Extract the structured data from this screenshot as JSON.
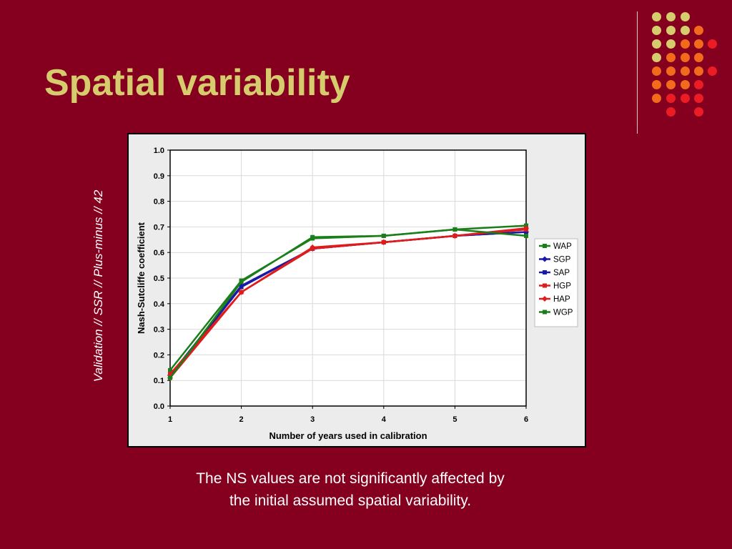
{
  "slide": {
    "title": "Spatial variability",
    "side_label": "Validation // SSR // Plus-minus // 42",
    "caption_lines": [
      "The NS values are not significantly affected by",
      "the initial assumed spatial variability."
    ],
    "colors": {
      "background": "#85001f",
      "title": "#d6cc6e",
      "dot_yellow": "#d6cc6e",
      "dot_orange": "#f26b1d",
      "dot_red": "#ec1c24"
    }
  },
  "chart_data": {
    "type": "line",
    "xlabel": "Number of years used in calibration",
    "ylabel": "Nash-Sutcliffe coefficient",
    "x": [
      1,
      2,
      3,
      4,
      5,
      6
    ],
    "xlim": [
      1,
      6
    ],
    "ylim": [
      0.0,
      1.0
    ],
    "x_ticks": [
      "1",
      "2",
      "3",
      "4",
      "5",
      "6"
    ],
    "y_ticks": [
      "0.0",
      "0.1",
      "0.2",
      "0.3",
      "0.4",
      "0.5",
      "0.6",
      "0.7",
      "0.8",
      "0.9",
      "1.0"
    ],
    "grid": true,
    "legend_position": "right",
    "series": [
      {
        "name": "WAP",
        "color": "#1a7f1a",
        "marker": "square",
        "values": [
          0.14,
          0.49,
          0.655,
          0.665,
          0.69,
          0.705
        ]
      },
      {
        "name": "SGP",
        "color": "#1a1aa6",
        "marker": "diamond",
        "values": [
          0.12,
          0.47,
          0.615,
          0.64,
          0.665,
          0.68
        ]
      },
      {
        "name": "SAP",
        "color": "#1a1aa6",
        "marker": "square",
        "values": [
          0.115,
          0.465,
          0.615,
          0.64,
          0.665,
          0.68
        ]
      },
      {
        "name": "HGP",
        "color": "#e01b1b",
        "marker": "square",
        "values": [
          0.125,
          0.445,
          0.615,
          0.64,
          0.665,
          0.69
        ]
      },
      {
        "name": "HAP",
        "color": "#e01b1b",
        "marker": "diamond",
        "values": [
          0.11,
          0.445,
          0.62,
          0.64,
          0.665,
          0.695
        ]
      },
      {
        "name": "WGP",
        "color": "#1a7f1a",
        "marker": "square",
        "values": [
          0.11,
          0.485,
          0.66,
          0.665,
          0.69,
          0.665
        ]
      }
    ]
  }
}
